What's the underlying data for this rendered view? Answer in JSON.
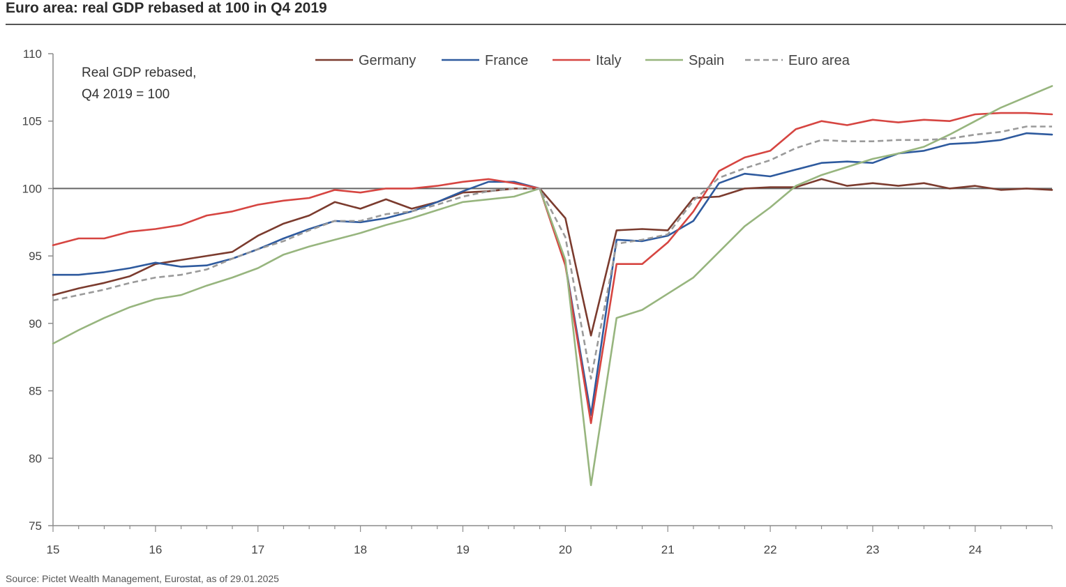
{
  "chart_data": {
    "type": "line",
    "title": "Euro area: real GDP rebased at 100 in Q4 2019",
    "note_lines": [
      "Real GDP rebased,",
      "Q4 2019 = 100"
    ],
    "source": "Source: Pictet Wealth Management, Eurostat, as of 29.01.2025",
    "xlabel": "",
    "ylabel": "",
    "xlim": [
      15,
      24.75
    ],
    "ylim": [
      75,
      110
    ],
    "x_ticks": [
      15,
      16,
      17,
      18,
      19,
      20,
      21,
      22,
      23,
      24
    ],
    "x_tick_labels": [
      "15",
      "16",
      "17",
      "18",
      "19",
      "20",
      "21",
      "22",
      "23",
      "24"
    ],
    "y_ticks": [
      75,
      80,
      85,
      90,
      95,
      100,
      105,
      110
    ],
    "y_tick_labels": [
      "75",
      "80",
      "85",
      "90",
      "95",
      "100",
      "105",
      "110"
    ],
    "reference_line": 100,
    "grid": false,
    "legend_position": "top",
    "x": [
      15,
      15.25,
      15.5,
      15.75,
      16,
      16.25,
      16.5,
      16.75,
      17,
      17.25,
      17.5,
      17.75,
      18,
      18.25,
      18.5,
      18.75,
      19,
      19.25,
      19.5,
      19.75,
      20,
      20.25,
      20.5,
      20.75,
      21,
      21.25,
      21.5,
      21.75,
      22,
      22.25,
      22.5,
      22.75,
      23,
      23.25,
      23.5,
      23.75,
      24,
      24.25,
      24.5,
      24.75
    ],
    "series": [
      {
        "name": "Germany",
        "color": "#7b3b2e",
        "dash": "solid",
        "values": [
          92.1,
          92.6,
          93.0,
          93.5,
          94.4,
          94.7,
          95.0,
          95.3,
          96.5,
          97.4,
          98.0,
          99.0,
          98.5,
          99.2,
          98.5,
          99.0,
          99.7,
          99.8,
          100.0,
          100.0,
          97.8,
          89.1,
          96.9,
          97.0,
          96.9,
          99.3,
          99.4,
          100.0,
          100.1,
          100.1,
          100.7,
          100.2,
          100.4,
          100.2,
          100.4,
          100.0,
          100.2,
          99.9,
          100.0,
          99.9
        ]
      },
      {
        "name": "France",
        "color": "#2e5a9e",
        "dash": "solid",
        "values": [
          93.6,
          93.6,
          93.8,
          94.1,
          94.5,
          94.2,
          94.3,
          94.8,
          95.5,
          96.3,
          97.0,
          97.6,
          97.5,
          97.8,
          98.3,
          99.0,
          99.8,
          100.5,
          100.5,
          100.0,
          94.4,
          83.2,
          96.2,
          96.1,
          96.5,
          97.6,
          100.4,
          101.1,
          100.9,
          101.4,
          101.9,
          102.0,
          101.9,
          102.6,
          102.8,
          103.3,
          103.4,
          103.6,
          104.1,
          104.0
        ]
      },
      {
        "name": "Italy",
        "color": "#d64541",
        "dash": "solid",
        "values": [
          95.8,
          96.3,
          96.3,
          96.8,
          97.0,
          97.3,
          98.0,
          98.3,
          98.8,
          99.1,
          99.3,
          99.9,
          99.7,
          100.0,
          100.0,
          100.2,
          100.5,
          100.7,
          100.4,
          100.0,
          94.3,
          82.6,
          94.4,
          94.4,
          96.0,
          98.3,
          101.3,
          102.3,
          102.8,
          104.4,
          105.0,
          104.7,
          105.1,
          104.9,
          105.1,
          105.0,
          105.5,
          105.6,
          105.6,
          105.5
        ]
      },
      {
        "name": "Spain",
        "color": "#97b57e",
        "dash": "solid",
        "values": [
          88.5,
          89.5,
          90.4,
          91.2,
          91.8,
          92.1,
          92.8,
          93.4,
          94.1,
          95.1,
          95.7,
          96.2,
          96.7,
          97.3,
          97.8,
          98.4,
          99.0,
          99.2,
          99.4,
          100.0,
          94.7,
          78.0,
          90.4,
          91.0,
          92.2,
          93.4,
          95.3,
          97.2,
          98.6,
          100.2,
          101.0,
          101.6,
          102.2,
          102.6,
          103.1,
          104.0,
          105.0,
          106.0,
          106.8,
          107.6
        ]
      },
      {
        "name": "Euro area",
        "color": "#9a9a9a",
        "dash": "dashed",
        "values": [
          91.7,
          92.1,
          92.5,
          93.0,
          93.4,
          93.6,
          94.0,
          94.8,
          95.5,
          96.1,
          96.9,
          97.6,
          97.6,
          98.1,
          98.3,
          98.8,
          99.4,
          99.8,
          100.0,
          100.0,
          96.4,
          85.9,
          95.9,
          96.2,
          96.6,
          99.1,
          100.8,
          101.5,
          102.1,
          103.0,
          103.6,
          103.5,
          103.5,
          103.6,
          103.6,
          103.7,
          104.0,
          104.2,
          104.6,
          104.6
        ]
      }
    ]
  }
}
